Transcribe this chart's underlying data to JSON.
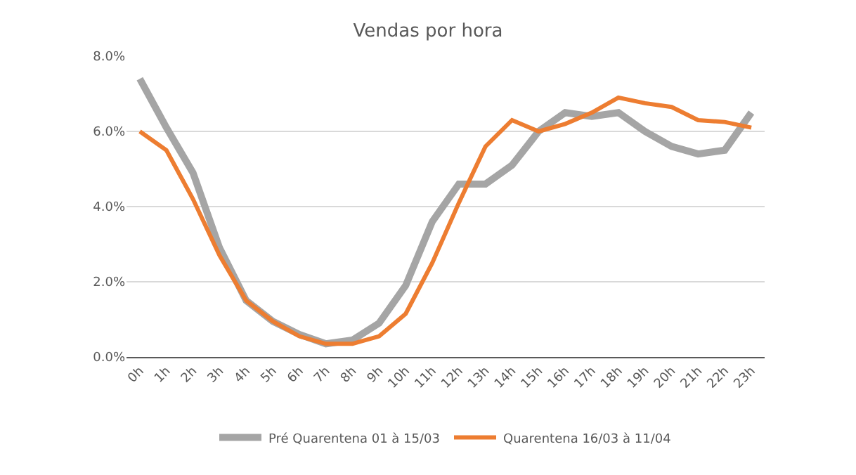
{
  "chart_data": {
    "type": "line",
    "title": "Vendas por hora",
    "categories": [
      "0h",
      "1h",
      "2h",
      "3h",
      "4h",
      "5h",
      "6h",
      "7h",
      "8h",
      "9h",
      "10h",
      "11h",
      "12h",
      "13h",
      "14h",
      "15h",
      "16h",
      "17h",
      "18h",
      "19h",
      "20h",
      "21h",
      "22h",
      "23h"
    ],
    "series": [
      {
        "name": "Pré Quarentena 01 à 15/03",
        "color": "#a5a5a5",
        "values": [
          7.4,
          6.1,
          4.9,
          2.9,
          1.5,
          0.95,
          0.6,
          0.35,
          0.45,
          0.9,
          1.9,
          3.6,
          4.6,
          4.6,
          5.1,
          6.0,
          6.5,
          6.4,
          6.5,
          6.0,
          5.6,
          5.4,
          5.5,
          6.5
        ]
      },
      {
        "name": "Quarentena 16/03 à 11/04",
        "color": "#ed7d31",
        "values": [
          6.0,
          5.5,
          4.2,
          2.7,
          1.5,
          0.95,
          0.55,
          0.35,
          0.35,
          0.55,
          1.15,
          2.5,
          4.1,
          5.6,
          6.3,
          6.0,
          6.2,
          6.5,
          6.9,
          6.75,
          6.65,
          6.3,
          6.25,
          6.1
        ]
      }
    ],
    "ylim": [
      0,
      8
    ],
    "yticks": [
      {
        "value": 0,
        "label": "0.0%"
      },
      {
        "value": 2,
        "label": "2.0%"
      },
      {
        "value": 4,
        "label": "4.0%"
      },
      {
        "value": 6,
        "label": "6.0%"
      },
      {
        "value": 8,
        "label": "8.0%"
      }
    ],
    "grid": "y",
    "legend": "bottom",
    "marker": "none",
    "line_style": "solid"
  }
}
